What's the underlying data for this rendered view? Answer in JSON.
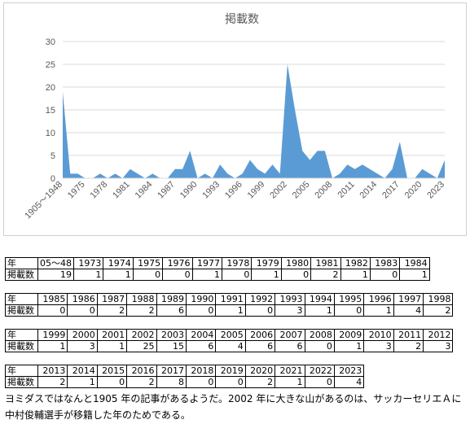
{
  "chart_data": {
    "type": "area",
    "title": "掲載数",
    "xlabel": "",
    "ylabel": "",
    "ylim": [
      0,
      30
    ],
    "y_ticks": [
      "0",
      "5",
      "10",
      "15",
      "20",
      "25",
      "30"
    ],
    "grid": true,
    "legend": "none",
    "color": "#5b9bd5",
    "x": [
      "1905～1948",
      1973,
      1974,
      1975,
      1976,
      1977,
      1978,
      1979,
      1980,
      1981,
      1982,
      1983,
      1984,
      1985,
      1986,
      1987,
      1988,
      1989,
      1990,
      1991,
      1992,
      1993,
      1994,
      1995,
      1996,
      1997,
      1998,
      1999,
      2000,
      2001,
      2002,
      2003,
      2004,
      2005,
      2006,
      2007,
      2008,
      2009,
      2010,
      2011,
      2012,
      2013,
      2014,
      2015,
      2016,
      2017,
      2018,
      2019,
      2020,
      2021,
      2022,
      2023
    ],
    "values": [
      19,
      1,
      1,
      0,
      0,
      1,
      0,
      1,
      0,
      2,
      1,
      0,
      1,
      0,
      0,
      2,
      2,
      6,
      0,
      1,
      0,
      3,
      1,
      0,
      1,
      4,
      2,
      1,
      3,
      1,
      25,
      15,
      6,
      4,
      6,
      6,
      0,
      1,
      3,
      2,
      3,
      2,
      1,
      0,
      2,
      8,
      0,
      0,
      2,
      1,
      0,
      4
    ],
    "x_tick_labels": [
      "1905～1948",
      "1975",
      "1978",
      "1981",
      "1984",
      "1987",
      "1990",
      "1993",
      "1996",
      "1999",
      "2002",
      "2005",
      "2008",
      "2011",
      "2014",
      "2017",
      "2020",
      "2023"
    ]
  },
  "tables": [
    {
      "years": [
        "05～48",
        "1973",
        "1974",
        "1975",
        "1976",
        "1977",
        "1978",
        "1979",
        "1980",
        "1981",
        "1982",
        "1983",
        "1984"
      ],
      "counts": [
        "19",
        "1",
        "1",
        "0",
        "0",
        "1",
        "0",
        "1",
        "0",
        "2",
        "1",
        "0",
        "1"
      ]
    },
    {
      "years": [
        "1985",
        "1986",
        "1987",
        "1988",
        "1989",
        "1990",
        "1991",
        "1992",
        "1993",
        "1994",
        "1995",
        "1996",
        "1997",
        "1998"
      ],
      "counts": [
        "0",
        "0",
        "2",
        "2",
        "6",
        "0",
        "1",
        "0",
        "3",
        "1",
        "0",
        "1",
        "4",
        "2"
      ]
    },
    {
      "years": [
        "1999",
        "2000",
        "2001",
        "2002",
        "2003",
        "2004",
        "2005",
        "2006",
        "2007",
        "2008",
        "2009",
        "2010",
        "2011",
        "2012"
      ],
      "counts": [
        "1",
        "3",
        "1",
        "25",
        "15",
        "6",
        "4",
        "6",
        "6",
        "0",
        "1",
        "3",
        "2",
        "3"
      ]
    },
    {
      "years": [
        "2013",
        "2014",
        "2015",
        "2016",
        "2017",
        "2018",
        "2019",
        "2020",
        "2021",
        "2022",
        "2023"
      ],
      "counts": [
        "2",
        "1",
        "0",
        "2",
        "8",
        "0",
        "0",
        "2",
        "1",
        "0",
        "4"
      ]
    }
  ],
  "row_labels": {
    "year": "年",
    "count": "掲載数"
  },
  "caption": "ヨミダスではなんと1905 年の記事があるようだ。2002 年に大きな山があるのは、サッカーセリエＡに中村俊輔選手が移籍した年のためである。"
}
